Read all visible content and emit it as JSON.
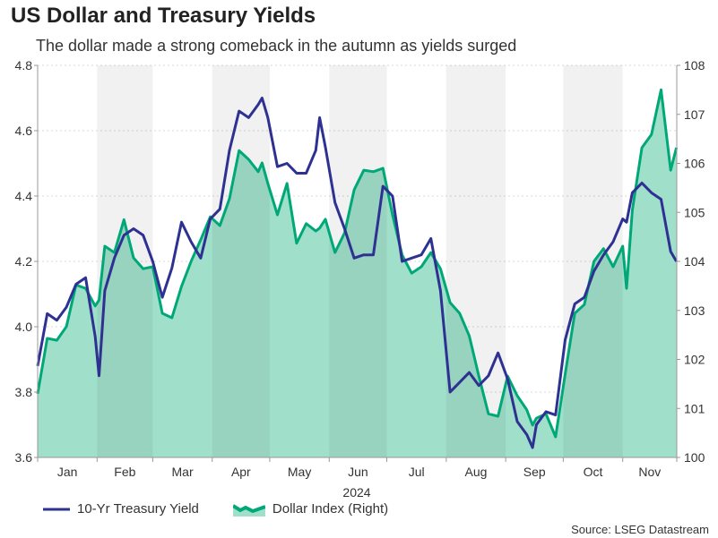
{
  "chart_data": {
    "type": "line",
    "title": "US Dollar and Treasury Yields",
    "subtitle": "The dollar made a strong comeback in the autumn as yields surged",
    "xlabel": "2024",
    "x_tick_labels": [
      "Jan",
      "Feb",
      "Mar",
      "Apr",
      "May",
      "Jun",
      "Jul",
      "Aug",
      "Sep",
      "Oct",
      "Nov"
    ],
    "y_left": {
      "lim": [
        3.6,
        4.8
      ],
      "ticks": [
        "4.8",
        "4.6",
        "4.4",
        "4.2",
        "4.0",
        "3.8",
        "3.6"
      ]
    },
    "y_right": {
      "lim": [
        100,
        108
      ],
      "ticks": [
        "108",
        "107",
        "106",
        "105",
        "104",
        "103",
        "102",
        "101",
        "100"
      ]
    },
    "grid": "horizontal dotted",
    "legend": "bottom-left",
    "source": "Source: LSEG Datastream",
    "x": [
      "2024-01-01",
      "2024-01-06",
      "2024-01-11",
      "2024-01-16",
      "2024-01-21",
      "2024-01-26",
      "2024-01-31",
      "2024-02-02",
      "2024-02-05",
      "2024-02-10",
      "2024-02-15",
      "2024-02-20",
      "2024-02-25",
      "2024-03-01",
      "2024-03-06",
      "2024-03-11",
      "2024-03-16",
      "2024-03-21",
      "2024-03-26",
      "2024-03-31",
      "2024-04-05",
      "2024-04-10",
      "2024-04-15",
      "2024-04-20",
      "2024-04-25",
      "2024-04-27",
      "2024-04-30",
      "2024-05-05",
      "2024-05-10",
      "2024-05-15",
      "2024-05-20",
      "2024-05-25",
      "2024-05-27",
      "2024-05-30",
      "2024-06-04",
      "2024-06-09",
      "2024-06-14",
      "2024-06-19",
      "2024-06-24",
      "2024-06-29",
      "2024-07-04",
      "2024-07-09",
      "2024-07-14",
      "2024-07-19",
      "2024-07-24",
      "2024-07-29",
      "2024-08-03",
      "2024-08-08",
      "2024-08-13",
      "2024-08-18",
      "2024-08-23",
      "2024-08-28",
      "2024-09-02",
      "2024-09-07",
      "2024-09-12",
      "2024-09-15",
      "2024-09-17",
      "2024-09-22",
      "2024-09-27",
      "2024-10-02",
      "2024-10-07",
      "2024-10-12",
      "2024-10-17",
      "2024-10-22",
      "2024-10-27",
      "2024-11-01",
      "2024-11-03",
      "2024-11-06",
      "2024-11-11",
      "2024-11-16",
      "2024-11-21",
      "2024-11-26",
      "2024-11-29"
    ],
    "series": [
      {
        "name": "10-Yr Treasury Yield",
        "axis": "left",
        "color": "#2e3192",
        "values": [
          3.88,
          4.04,
          4.02,
          4.06,
          4.13,
          4.15,
          3.97,
          3.85,
          4.11,
          4.21,
          4.28,
          4.3,
          4.28,
          4.2,
          4.09,
          4.18,
          4.32,
          4.26,
          4.21,
          4.33,
          4.36,
          4.54,
          4.66,
          4.64,
          4.68,
          4.7,
          4.64,
          4.49,
          4.5,
          4.47,
          4.47,
          4.54,
          4.64,
          4.55,
          4.38,
          4.3,
          4.21,
          4.22,
          4.22,
          4.43,
          4.4,
          4.2,
          4.21,
          4.22,
          4.27,
          4.11,
          3.8,
          3.83,
          3.86,
          3.82,
          3.85,
          3.92,
          3.84,
          3.71,
          3.67,
          3.63,
          3.7,
          3.74,
          3.73,
          3.96,
          4.07,
          4.09,
          4.17,
          4.22,
          4.26,
          4.33,
          4.32,
          4.41,
          4.44,
          4.41,
          4.39,
          4.23,
          4.2
        ]
      },
      {
        "name": "Dollar Index (Right)",
        "axis": "right",
        "color": "#00a878",
        "fill": "#a0e0cb",
        "values": [
          101.3,
          102.43,
          102.39,
          102.67,
          103.52,
          103.45,
          103.09,
          103.21,
          104.31,
          104.18,
          104.85,
          104.07,
          103.85,
          103.89,
          102.94,
          102.85,
          103.49,
          104.0,
          104.44,
          104.91,
          104.73,
          105.28,
          106.26,
          106.08,
          105.83,
          106.01,
          105.59,
          104.95,
          105.59,
          104.37,
          104.77,
          104.62,
          104.68,
          104.86,
          104.18,
          104.58,
          105.46,
          105.86,
          105.83,
          105.9,
          104.95,
          104.13,
          103.76,
          103.89,
          104.18,
          103.85,
          103.16,
          102.94,
          102.48,
          101.66,
          100.89,
          100.84,
          101.66,
          101.26,
          100.97,
          100.66,
          100.8,
          100.89,
          100.42,
          101.7,
          102.94,
          103.12,
          104.0,
          104.26,
          103.89,
          104.31,
          103.45,
          105.04,
          106.32,
          106.59,
          107.5,
          105.86,
          106.32
        ]
      }
    ]
  }
}
